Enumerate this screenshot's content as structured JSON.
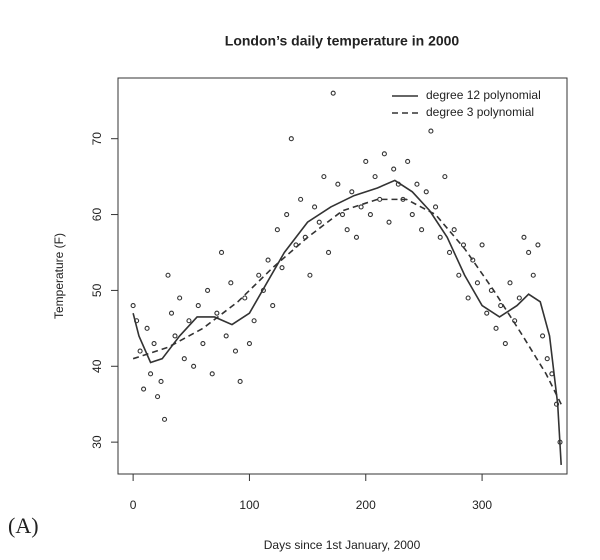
{
  "chart_data": {
    "type": "scatter",
    "title": "London’s daily temperature in 2000",
    "x_label": "Days since 1st January, 2000",
    "y_label": "Temperature (F)",
    "panel_label": "(A)",
    "xlim": [
      -13,
      373
    ],
    "ylim": [
      25.8,
      78
    ],
    "xticks": [
      0,
      100,
      200,
      300
    ],
    "yticks": [
      30,
      40,
      50,
      60,
      70
    ],
    "legend_position": "top-right",
    "points": {
      "color": "#333333",
      "x": [
        0,
        3,
        6,
        9,
        12,
        15,
        18,
        21,
        24,
        27,
        30,
        33,
        36,
        40,
        44,
        48,
        52,
        56,
        60,
        64,
        68,
        72,
        76,
        80,
        84,
        88,
        92,
        96,
        100,
        104,
        108,
        112,
        116,
        120,
        124,
        128,
        132,
        136,
        140,
        144,
        148,
        152,
        156,
        160,
        164,
        168,
        172,
        176,
        180,
        184,
        188,
        192,
        196,
        200,
        204,
        208,
        212,
        216,
        220,
        224,
        228,
        232,
        236,
        240,
        244,
        248,
        252,
        256,
        260,
        264,
        268,
        272,
        276,
        280,
        284,
        288,
        292,
        296,
        300,
        304,
        308,
        312,
        316,
        320,
        324,
        328,
        332,
        336,
        340,
        344,
        348,
        352,
        356,
        360,
        364,
        367
      ],
      "y": [
        48,
        46,
        42,
        37,
        45,
        39,
        43,
        36,
        38,
        33,
        52,
        47,
        44,
        49,
        41,
        46,
        40,
        48,
        43,
        50,
        39,
        47,
        55,
        44,
        51,
        42,
        38,
        49,
        43,
        46,
        52,
        50,
        54,
        48,
        58,
        53,
        60,
        70,
        56,
        62,
        57,
        52,
        61,
        59,
        65,
        55,
        76,
        64,
        60,
        58,
        63,
        57,
        61,
        67,
        60,
        65,
        62,
        68,
        59,
        66,
        64,
        62,
        67,
        60,
        64,
        58,
        63,
        71,
        61,
        57,
        65,
        55,
        58,
        52,
        56,
        49,
        54,
        51,
        56,
        47,
        50,
        45,
        48,
        43,
        51,
        46,
        49,
        57,
        55,
        52,
        56,
        44,
        41,
        39,
        35,
        30
      ]
    },
    "series": [
      {
        "name": "degree 12 polynomial",
        "color": "#333333",
        "dash": "solid",
        "x": [
          0,
          5,
          15,
          25,
          40,
          55,
          70,
          85,
          100,
          115,
          130,
          150,
          170,
          190,
          210,
          225,
          240,
          255,
          270,
          285,
          300,
          315,
          330,
          340,
          350,
          358,
          365,
          368
        ],
        "values": [
          47,
          44,
          40.5,
          41,
          44,
          46.5,
          46.5,
          45.5,
          47,
          51,
          55,
          59,
          61,
          62.5,
          63.5,
          64.5,
          63,
          60.5,
          57,
          52,
          48,
          46.5,
          48,
          49.5,
          48.5,
          44,
          35,
          27
        ]
      },
      {
        "name": "degree 3 polynomial",
        "color": "#333333",
        "dash": "dashed",
        "x": [
          0,
          30,
          60,
          90,
          120,
          150,
          180,
          210,
          235,
          260,
          285,
          310,
          335,
          355,
          368
        ],
        "values": [
          41,
          42.5,
          45,
          48.5,
          53,
          57,
          60.5,
          62,
          62,
          60,
          55.5,
          50,
          44,
          39,
          35
        ]
      }
    ]
  }
}
